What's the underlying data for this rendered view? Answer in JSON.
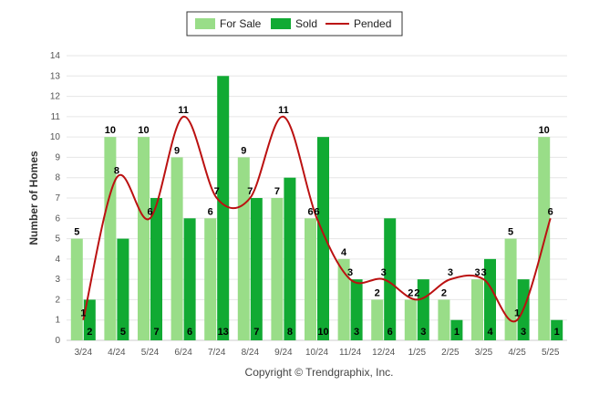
{
  "chart_data": {
    "type": "bar",
    "title": "",
    "xlabel": "",
    "ylabel": "Number of Homes",
    "ylim": [
      0,
      14
    ],
    "yticks": [
      0,
      1,
      2,
      3,
      4,
      5,
      6,
      7,
      8,
      9,
      10,
      11,
      12,
      13,
      14
    ],
    "grid": true,
    "legend_position": "top-center",
    "categories": [
      "3/24",
      "4/24",
      "5/24",
      "6/24",
      "7/24",
      "8/24",
      "9/24",
      "10/24",
      "11/24",
      "12/24",
      "1/25",
      "2/25",
      "3/25",
      "4/25",
      "5/25"
    ],
    "series": [
      {
        "name": "For Sale",
        "kind": "bar",
        "color": "#99dd88",
        "values": [
          5,
          10,
          10,
          9,
          6,
          9,
          7,
          6,
          4,
          2,
          2,
          2,
          3,
          5,
          10
        ]
      },
      {
        "name": "Sold",
        "kind": "bar",
        "color": "#11aa33",
        "values": [
          2,
          5,
          7,
          6,
          13,
          7,
          8,
          10,
          3,
          6,
          3,
          1,
          4,
          3,
          1
        ]
      },
      {
        "name": "Pended",
        "kind": "line",
        "color": "#bb1111",
        "values": [
          1,
          8,
          6,
          11,
          7,
          7,
          11,
          6,
          3,
          3,
          2,
          3,
          3,
          1,
          6
        ]
      }
    ],
    "footer": "Copyright © Trendgraphix, Inc."
  }
}
